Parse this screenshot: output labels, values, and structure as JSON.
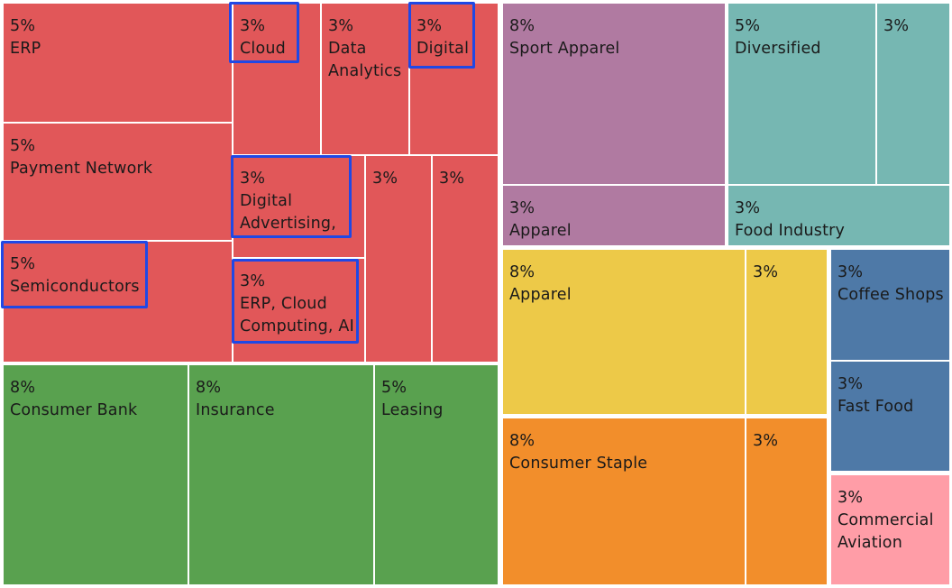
{
  "chart_data": {
    "type": "treemap",
    "value_label_unit": "%",
    "colors": {
      "red": "#e15759",
      "green": "#59a14f",
      "purple": "#b07aa1",
      "teal": "#76b7b2",
      "yellow": "#edc948",
      "orange": "#f28e2b",
      "blue": "#4e79a7",
      "pink": "#ff9da7"
    },
    "tiles": [
      {
        "id": "erp",
        "value": "5%",
        "label": "ERP",
        "color": "red"
      },
      {
        "id": "cloud",
        "value": "3%",
        "label": "Cloud",
        "color": "red",
        "highlighted": true
      },
      {
        "id": "data-analytics",
        "value": "3%",
        "label": "Data\nAnalytics",
        "color": "red"
      },
      {
        "id": "digital",
        "value": "3%",
        "label": "Digital",
        "color": "red",
        "highlighted": true
      },
      {
        "id": "payment-network",
        "value": "5%",
        "label": "Payment Network",
        "color": "red"
      },
      {
        "id": "digital-advertising",
        "value": "3%",
        "label": "Digital\nAdvertising,",
        "color": "red",
        "highlighted": true
      },
      {
        "id": "red-unlabeled-1",
        "value": "3%",
        "label": "",
        "color": "red"
      },
      {
        "id": "red-unlabeled-2",
        "value": "3%",
        "label": "",
        "color": "red"
      },
      {
        "id": "semiconductors",
        "value": "5%",
        "label": "Semiconductors",
        "color": "red",
        "highlighted": true
      },
      {
        "id": "erp-cloud-ai",
        "value": "3%",
        "label": "ERP, Cloud\nComputing, AI",
        "color": "red",
        "highlighted": true
      },
      {
        "id": "consumer-bank",
        "value": "8%",
        "label": "Consumer Bank",
        "color": "green"
      },
      {
        "id": "insurance",
        "value": "8%",
        "label": "Insurance",
        "color": "green"
      },
      {
        "id": "leasing",
        "value": "5%",
        "label": "Leasing",
        "color": "green"
      },
      {
        "id": "sport-apparel",
        "value": "8%",
        "label": "Sport Apparel",
        "color": "purple"
      },
      {
        "id": "apparel-purple",
        "value": "3%",
        "label": "Apparel",
        "color": "purple"
      },
      {
        "id": "diversified",
        "value": "5%",
        "label": "Diversified",
        "color": "teal"
      },
      {
        "id": "teal-unlabeled",
        "value": "3%",
        "label": "",
        "color": "teal"
      },
      {
        "id": "food-industry",
        "value": "3%",
        "label": "Food Industry",
        "color": "teal"
      },
      {
        "id": "apparel-yellow",
        "value": "8%",
        "label": "Apparel",
        "color": "yellow"
      },
      {
        "id": "yellow-unlabeled",
        "value": "3%",
        "label": "",
        "color": "yellow"
      },
      {
        "id": "coffee-shops",
        "value": "3%",
        "label": "Coffee Shops",
        "color": "blue"
      },
      {
        "id": "fast-food",
        "value": "3%",
        "label": "Fast Food",
        "color": "blue"
      },
      {
        "id": "consumer-staple",
        "value": "8%",
        "label": "Consumer Staple",
        "color": "orange"
      },
      {
        "id": "orange-unlabeled",
        "value": "3%",
        "label": "",
        "color": "orange"
      },
      {
        "id": "commercial-aviation",
        "value": "3%",
        "label": "Commercial\nAviation",
        "color": "pink"
      }
    ]
  }
}
